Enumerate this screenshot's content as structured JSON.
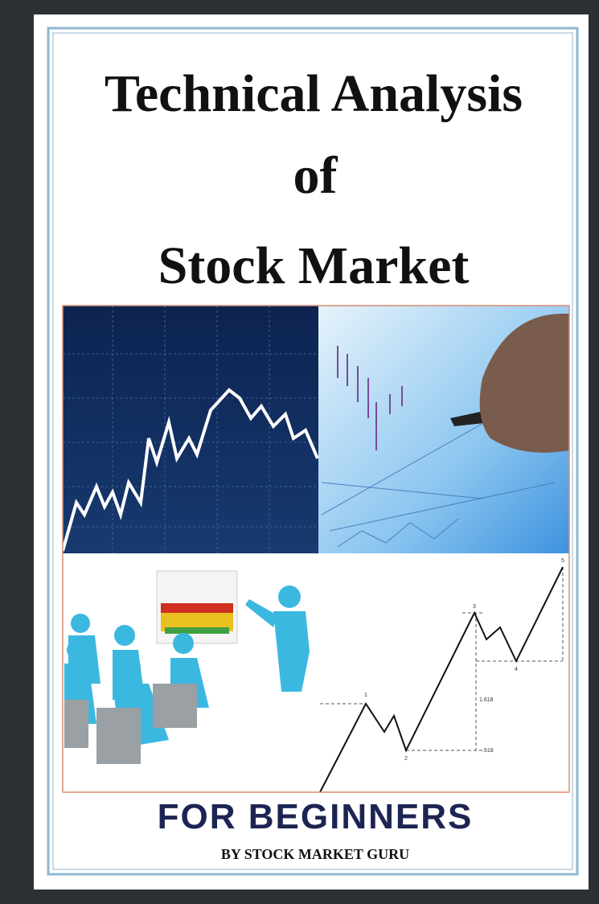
{
  "cover": {
    "title": [
      "Technical Analysis",
      "of",
      "Stock Market"
    ],
    "subtitle": "FOR BEGINNERS",
    "author": "BY STOCK MARKET GURU",
    "wave_chart": {
      "point_labels": [
        "1",
        "2",
        "3",
        "4",
        "5"
      ],
      "ratio_labels": [
        "1.618",
        ".618"
      ]
    }
  }
}
